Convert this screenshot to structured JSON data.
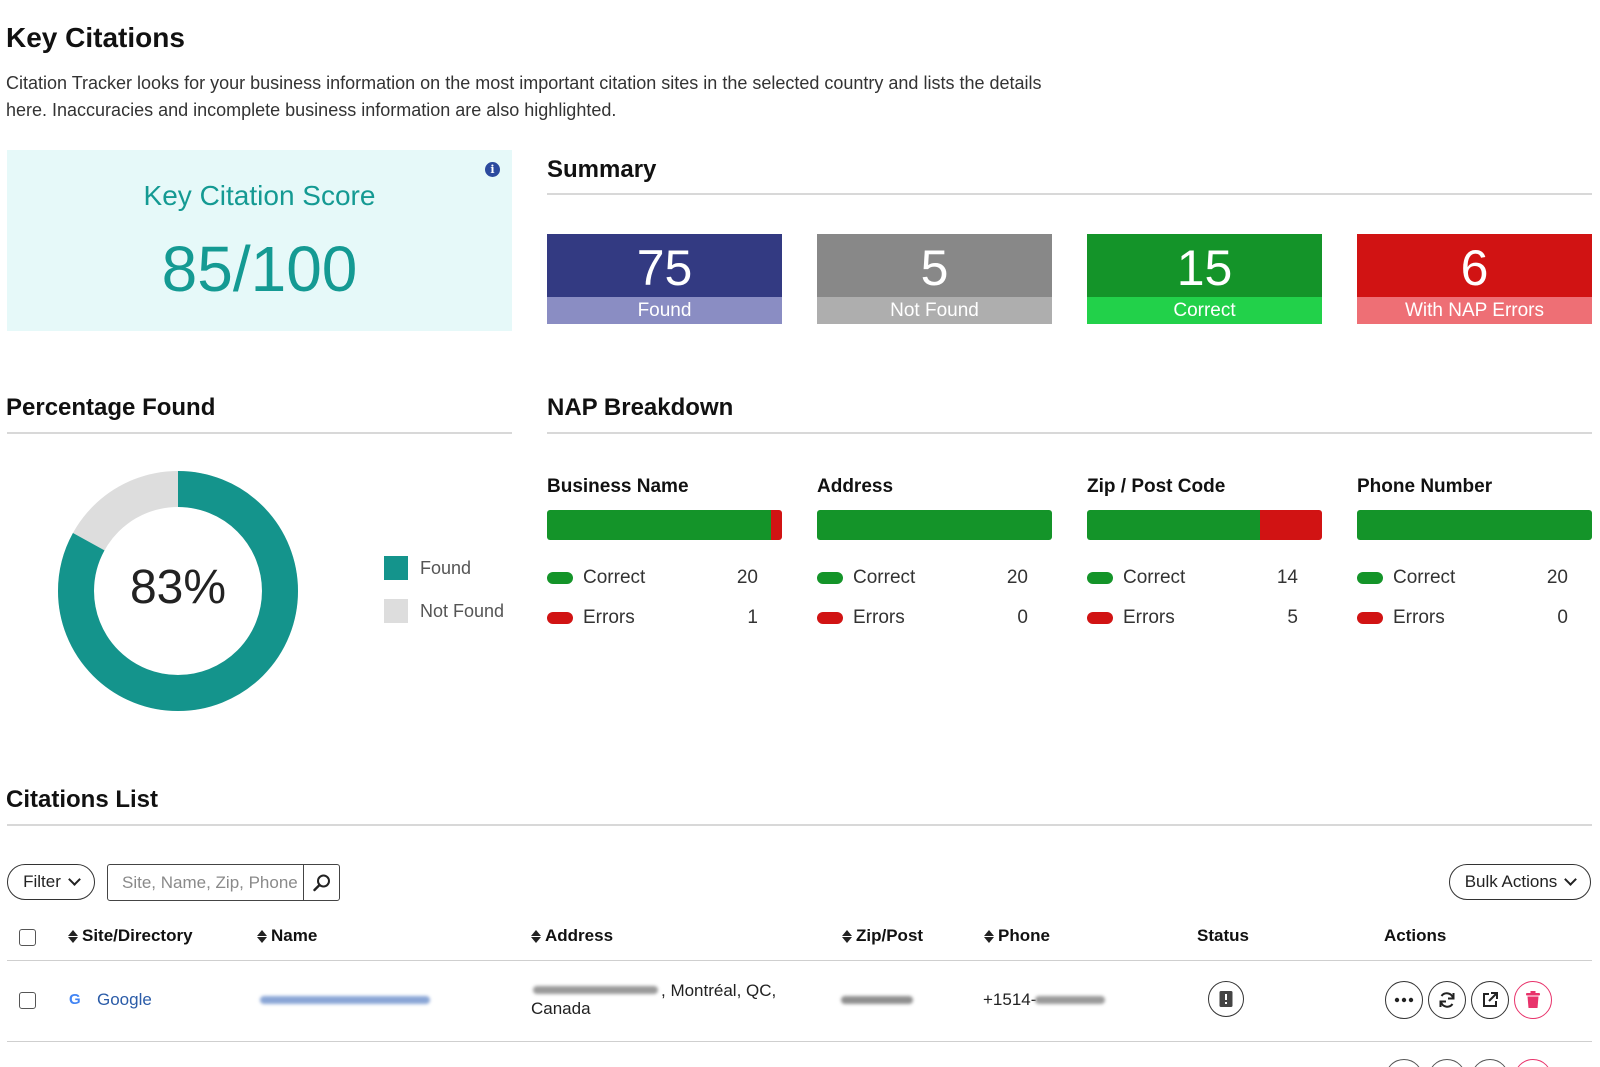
{
  "header": {
    "title": "Key Citations",
    "intro": "Citation Tracker looks for your business information on the most important citation sites in the selected country and lists the details here. Inaccuracies and incomplete business information are also highlighted."
  },
  "score_card": {
    "label": "Key Citation Score",
    "value": "85/100",
    "info_icon": "info-icon"
  },
  "summary": {
    "title": "Summary",
    "boxes": [
      {
        "value": "75",
        "label": "Found",
        "color_top": "#333a82",
        "color_bottom": "#8a8dc3"
      },
      {
        "value": "5",
        "label": "Not Found",
        "color_top": "#888888",
        "color_bottom": "#aeaeae"
      },
      {
        "value": "15",
        "label": "Correct",
        "color_top": "#149429",
        "color_bottom": "#22d14a"
      },
      {
        "value": "6",
        "label": "With NAP Errors",
        "color_top": "#d11313",
        "color_bottom": "#ee6f75"
      }
    ]
  },
  "percentage_found": {
    "title": "Percentage Found",
    "percent_label": "83%",
    "found_fraction": 0.83,
    "legend": [
      {
        "label": "Found",
        "color": "#14948c"
      },
      {
        "label": "Not Found",
        "color": "#dddddd"
      }
    ]
  },
  "nap": {
    "title": "NAP Breakdown",
    "correct_label": "Correct",
    "errors_label": "Errors",
    "columns": [
      {
        "title": "Business Name",
        "correct": "20",
        "errors": "1"
      },
      {
        "title": "Address",
        "correct": "20",
        "errors": "0"
      },
      {
        "title": "Zip / Post Code",
        "correct": "14",
        "errors": "5"
      },
      {
        "title": "Phone Number",
        "correct": "20",
        "errors": "0"
      }
    ],
    "colors": {
      "correct": "#149429",
      "errors": "#d11313"
    }
  },
  "citations": {
    "title": "Citations List",
    "filter_label": "Filter",
    "search_placeholder": "Site, Name, Zip, Phone",
    "bulk_label": "Bulk Actions",
    "headers": {
      "site": "Site/Directory",
      "name": "Name",
      "address": "Address",
      "zip": "Zip/Post",
      "phone": "Phone",
      "status": "Status",
      "actions": "Actions"
    },
    "rows": [
      {
        "site": "Google",
        "address_line1": ", Montréal, QC,",
        "address_line2": "Canada",
        "phone_prefix": "+1514-"
      }
    ]
  }
}
